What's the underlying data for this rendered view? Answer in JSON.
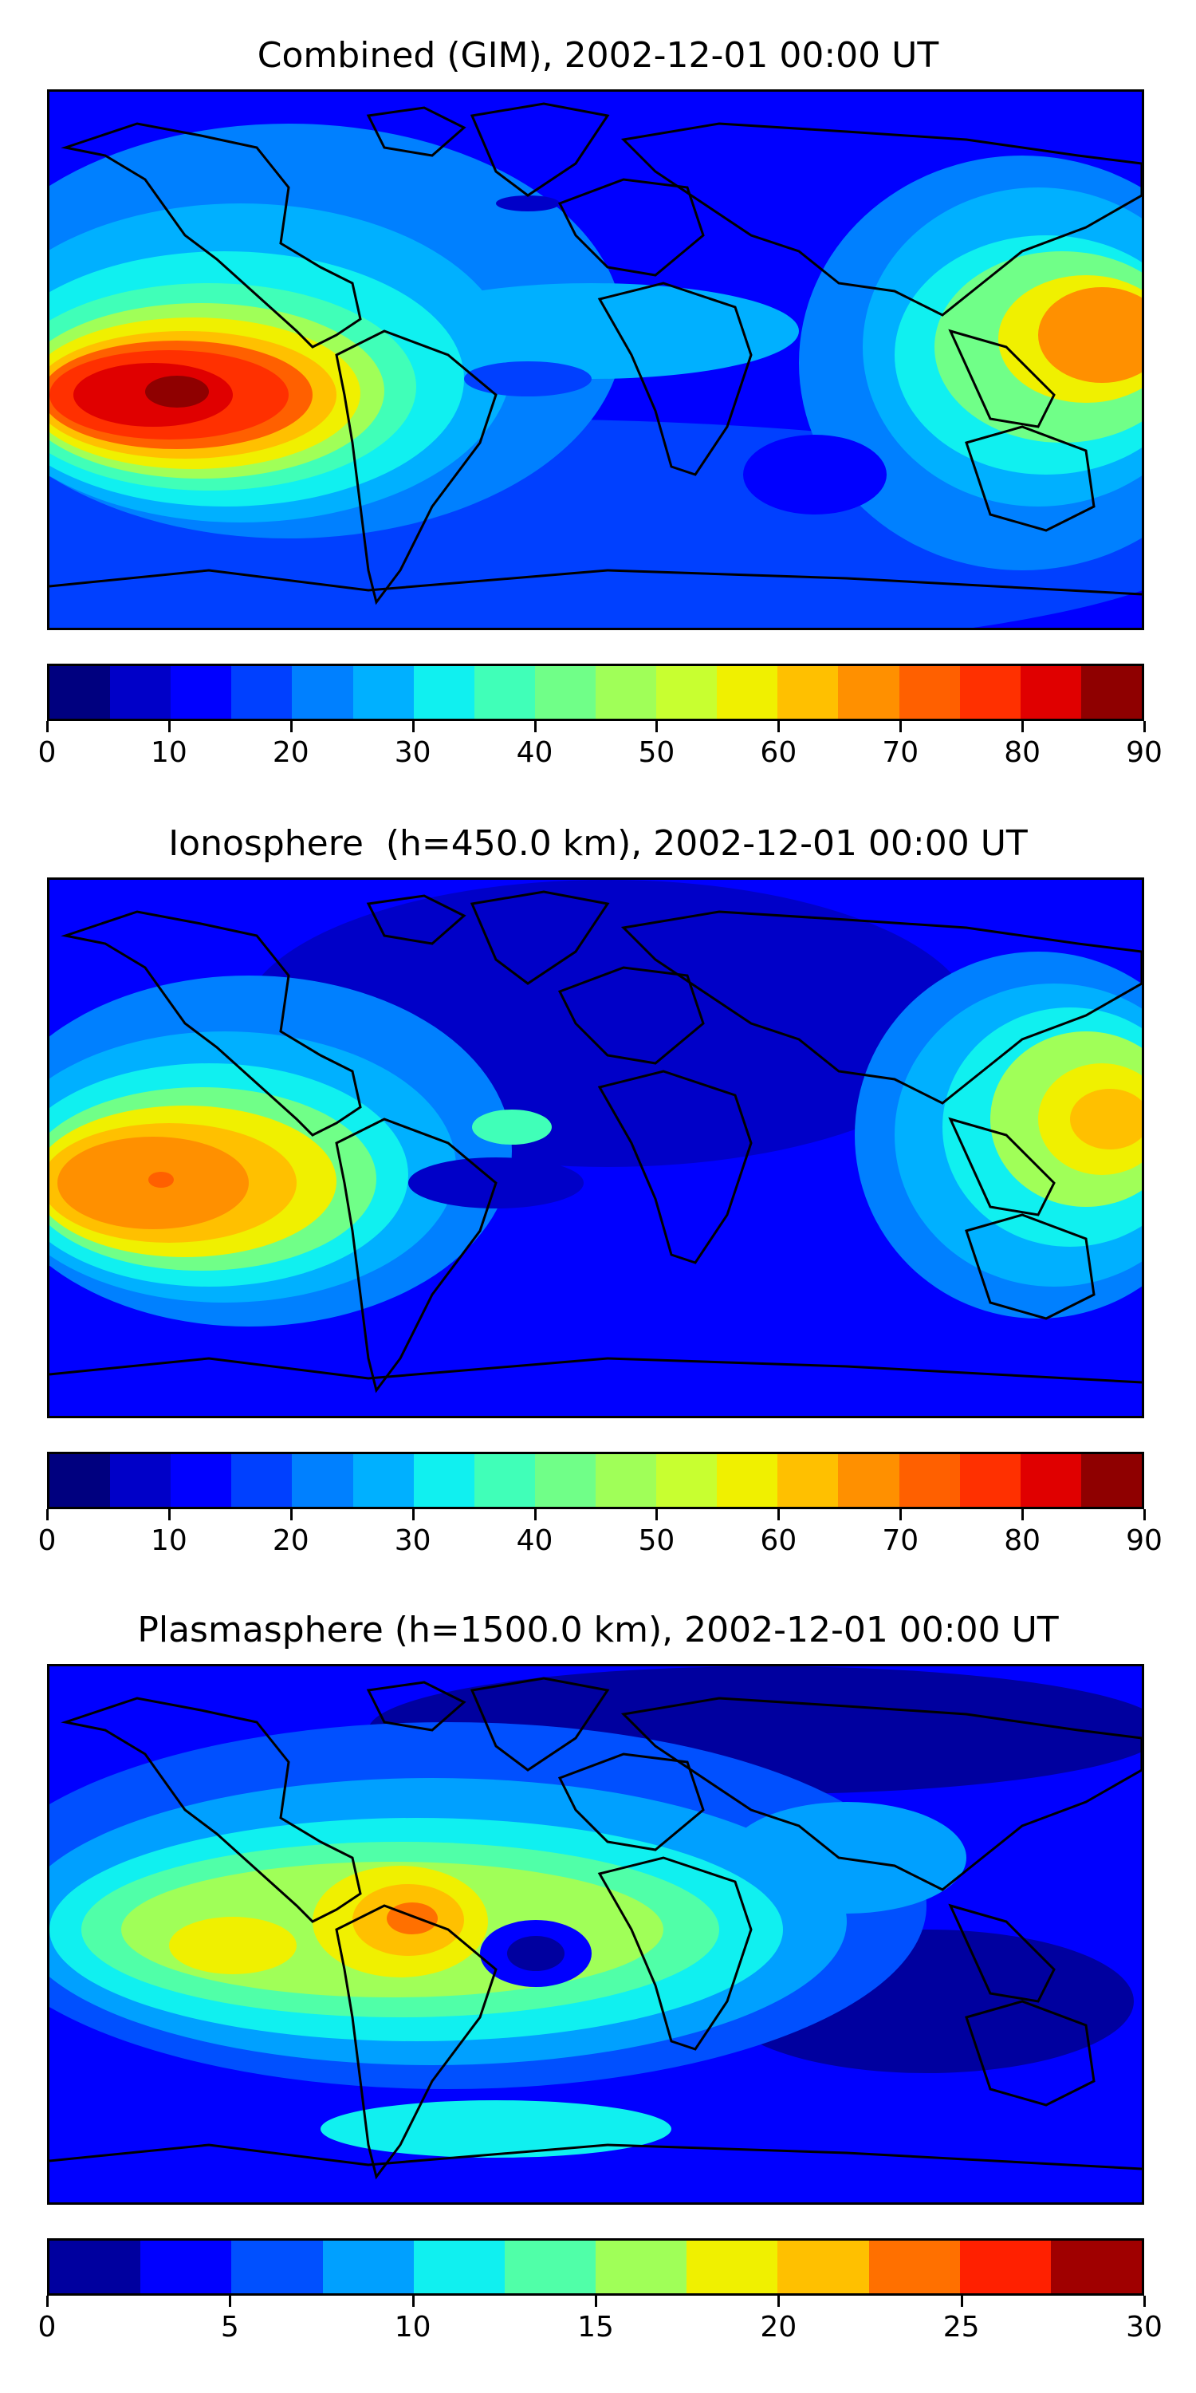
{
  "panels": [
    {
      "title": "Combined (GIM), 2002-12-01 00:00 UT",
      "ticks": [
        "0",
        "10",
        "20",
        "30",
        "40",
        "50",
        "60",
        "70",
        "80",
        "90"
      ],
      "vmin": 0,
      "vmax": 90,
      "levels": 18,
      "colors": [
        "#00007f",
        "#0000c8",
        "#0000ff",
        "#0040ff",
        "#0080ff",
        "#00b0ff",
        "#10f0f0",
        "#40ffb8",
        "#70ff88",
        "#a0ff58",
        "#c8ff30",
        "#f0f000",
        "#ffc000",
        "#ff9000",
        "#ff6000",
        "#ff3000",
        "#e00000",
        "#8f0000"
      ],
      "peak_value": 88
    },
    {
      "title": "Ionosphere  (h=450.0 km), 2002-12-01 00:00 UT",
      "ticks": [
        "0",
        "10",
        "20",
        "30",
        "40",
        "50",
        "60",
        "70",
        "80",
        "90"
      ],
      "vmin": 0,
      "vmax": 90,
      "levels": 18,
      "colors": [
        "#00007f",
        "#0000c8",
        "#0000ff",
        "#0040ff",
        "#0080ff",
        "#00b0ff",
        "#10f0f0",
        "#40ffb8",
        "#70ff88",
        "#a0ff58",
        "#c8ff30",
        "#f0f000",
        "#ffc000",
        "#ff9000",
        "#ff6000",
        "#ff3000",
        "#e00000",
        "#8f0000"
      ],
      "peak_value": 68
    },
    {
      "title": "Plasmasphere (h=1500.0 km), 2002-12-01 00:00 UT",
      "ticks": [
        "0",
        "5",
        "10",
        "15",
        "20",
        "25",
        "30"
      ],
      "vmin": 0,
      "vmax": 30,
      "levels": 12,
      "colors": [
        "#00009f",
        "#0000ff",
        "#0050ff",
        "#00a0ff",
        "#10f0f0",
        "#50ffa8",
        "#a0ff58",
        "#f0f000",
        "#ffc000",
        "#ff7000",
        "#ff2000",
        "#a00000"
      ],
      "peak_value": 24
    }
  ]
}
